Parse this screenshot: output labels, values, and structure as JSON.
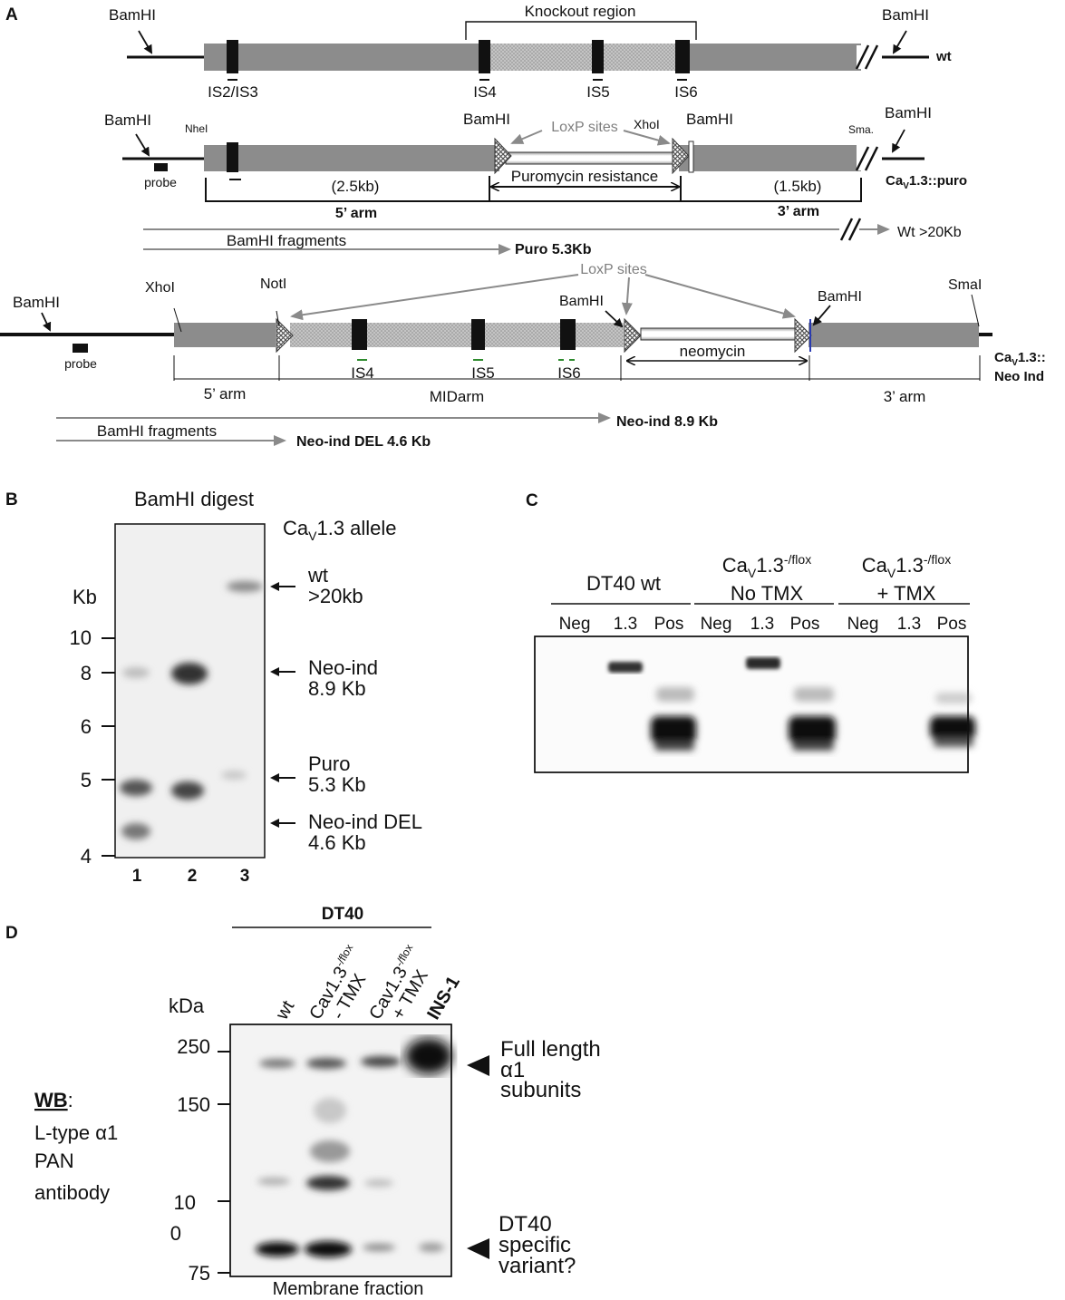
{
  "panelA": {
    "label": "A",
    "wt": {
      "bamhi_left": "BamHI",
      "bamhi_right": "BamHI",
      "knockout_label": "Knockout region",
      "is_labels": [
        "IS2/IS3",
        "IS4",
        "IS5",
        "IS6"
      ],
      "name": "wt"
    },
    "puro": {
      "bamhi_left": "BamHI",
      "nhel": "NheI",
      "bamhi_mid1": "BamHI",
      "loxp": "LoxP sites",
      "xhoi": "XhoI",
      "bamhi_mid2": "BamHI",
      "sma": "Sma.",
      "bamhi_right": "BamHI",
      "probe": "probe",
      "size_5": "(2.5kb)",
      "size_3": "(1.5kb)",
      "cassette": "Puromycin resistance",
      "arm_5": "5’ arm",
      "arm_3": "3’ arm",
      "name_prefix": "Ca",
      "name_sub": "V",
      "name_suffix": "1.3::puro",
      "fragments_label": "BamHI fragments",
      "puro_fragment": "Puro  5.3Kb",
      "wt_fragment": "Wt  >20Kb"
    },
    "neo": {
      "bamhi_left": "BamHI",
      "probe": "probe",
      "xhoi": "XhoI",
      "noti": "NotI",
      "loxp": "LoxP sites",
      "bamhi_mid": "BamHI",
      "bamhi_right": "BamHI",
      "smai": "SmaI",
      "is_labels": [
        "IS4",
        "IS5",
        "IS6"
      ],
      "cassette": "neomycin",
      "arm_5": "5’ arm",
      "mid_arm": "MIDarm",
      "arm_3": "3’ arm",
      "name_l1_prefix": "Ca",
      "name_l1_sub": "V",
      "name_l1_suffix": "1.3::",
      "name_l2": "Neo Ind",
      "fragments_label": "BamHI fragments",
      "neo_fragment": "Neo-ind 8.9 Kb",
      "del_fragment": "Neo-ind DEL 4.6 Kb"
    }
  },
  "panelB": {
    "label": "B",
    "title": "BamHI digest",
    "allele_prefix": "Ca",
    "allele_sub": "V",
    "allele_suffix": "1.3 allele",
    "unit": "Kb",
    "ticks": [
      "10",
      "8",
      "6",
      "5",
      "4"
    ],
    "lanes": [
      "1",
      "2",
      "3"
    ],
    "bands": [
      {
        "l1": "wt",
        "l2": ">20kb"
      },
      {
        "l1": "Neo-ind",
        "l2": "8.9 Kb"
      },
      {
        "l1": "Puro",
        "l2": "5.3 Kb"
      },
      {
        "l1": "Neo-ind DEL",
        "l2": "4.6 Kb"
      }
    ]
  },
  "panelC": {
    "label": "C",
    "group1": "DT40 wt",
    "group2_prefix": "Ca",
    "group2_sub": "V",
    "group2_suffix": "1.3",
    "group2_sup": "-/flox",
    "group2_l2": "No TMX",
    "group3_prefix": "Ca",
    "group3_sub": "V",
    "group3_suffix": "1.3",
    "group3_sup": "-/flox",
    "group3_l2": "+ TMX",
    "lanes": [
      "Neg",
      "1.3",
      "Pos",
      "Neg",
      "1.3",
      "Pos",
      "Neg",
      "1.3",
      "Pos"
    ]
  },
  "panelD": {
    "label": "D",
    "header": "DT40",
    "unit": "kDa",
    "lane_wt": "wt",
    "lane2_l1": "Cav1.3",
    "lane2_sup": "-/flox",
    "lane2_l2": "- TMX",
    "lane3_l1": "Cav1.3",
    "lane3_sup": "-/flox",
    "lane3_l2": "+ TMX",
    "lane_ins": "INS-1",
    "ticks": [
      "250",
      "150",
      "10",
      "0",
      "75"
    ],
    "wb_label": "WB",
    "wb_colon": ":",
    "wb_l2": "L-type α1",
    "wb_l3": "PAN",
    "wb_l4": "antibody",
    "band1": [
      "Full length",
      "α1",
      "subunits"
    ],
    "band2": [
      "DT40",
      "specific",
      "variant?"
    ],
    "footer": "Membrane fraction"
  }
}
